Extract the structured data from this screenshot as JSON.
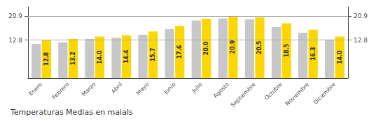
{
  "chart_data": {
    "type": "bar",
    "title": "Temperaturas Medias en maials",
    "categories": [
      "Enero",
      "Febrero",
      "Marzo",
      "Abril",
      "Mayo",
      "Junio",
      "Julio",
      "Agosto",
      "Septiembre",
      "Octubre",
      "Noviembre",
      "Diciembre"
    ],
    "series": [
      {
        "color": "#C8C8C8",
        "values": [
          11.5,
          12.0,
          13.2,
          13.6,
          14.6,
          16.5,
          19.4,
          20.1,
          19.8,
          17.2,
          15.3,
          13.0
        ]
      },
      {
        "color": "#FFD700",
        "values": [
          12.8,
          13.2,
          14.0,
          14.4,
          15.7,
          17.6,
          20.0,
          20.9,
          20.5,
          18.5,
          16.3,
          14.0
        ],
        "data_labels": true,
        "value_labels": [
          "12.8",
          "13.2",
          "14.0",
          "14.4",
          "15.7",
          "17.6",
          "20.0",
          "20.9",
          "20.5",
          "18.5",
          "16.3",
          "14.0"
        ]
      }
    ],
    "ylim": [
      0,
      24.0
    ],
    "yticks": [
      12.8,
      20.9
    ],
    "y2lim": [
      0,
      24.0
    ],
    "y2ticks": [
      12.8,
      20.9
    ],
    "grid": true
  }
}
